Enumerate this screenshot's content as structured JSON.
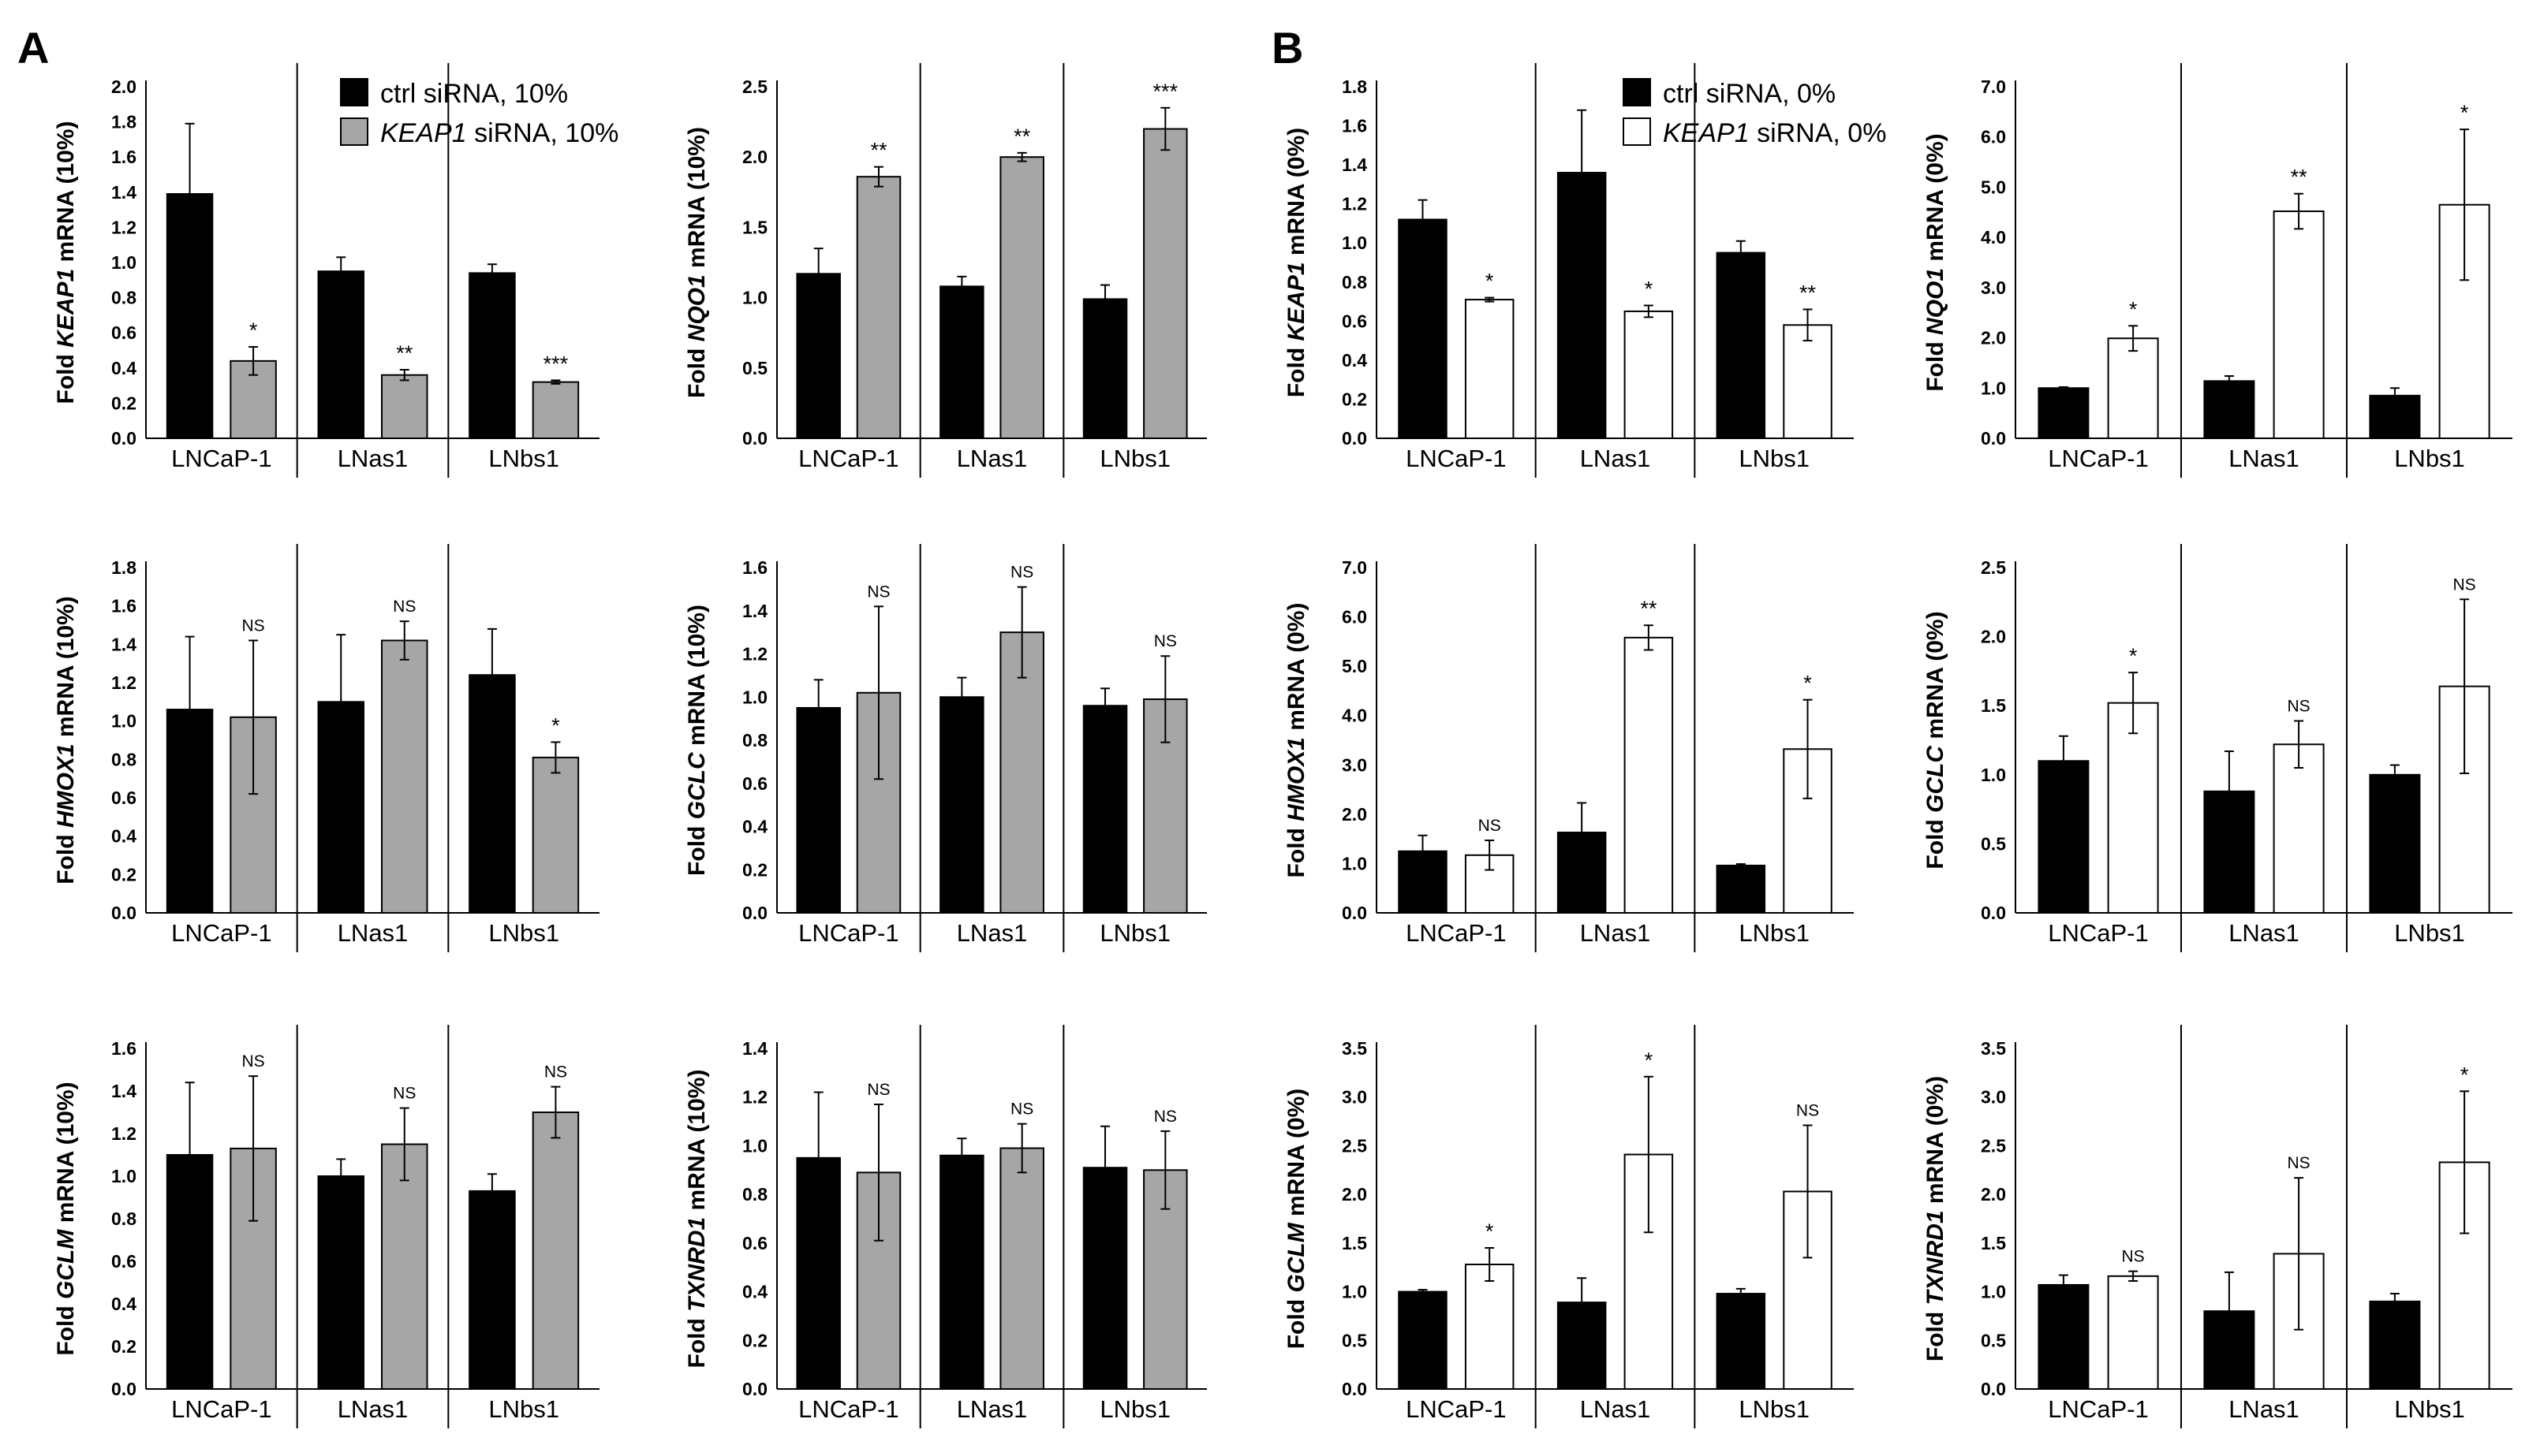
{
  "figure": {
    "panel_letters": [
      "A",
      "B"
    ]
  },
  "legends": {
    "A": {
      "entries": [
        {
          "label_italic": "",
          "label": "ctrl siRNA, 10%",
          "color": "#000000"
        },
        {
          "label_italic": "KEAP1",
          "label": " siRNA, 10%",
          "color": "#a6a6a6"
        }
      ]
    },
    "B": {
      "entries": [
        {
          "label_italic": "",
          "label": "ctrl siRNA, 0%",
          "color": "#000000"
        },
        {
          "label_italic": "KEAP1",
          "label": " siRNA, 0%",
          "color": "#ffffff"
        }
      ]
    }
  },
  "colors": {
    "ctrl": "#000000",
    "keap1_10": "#a6a6a6",
    "keap1_0": "#ffffff"
  },
  "chart_data": [
    {
      "type": "bar",
      "panel": "A",
      "gene": "KEAP1",
      "ylabel_pre": "Fold ",
      "ylabel_gene": "KEAP1",
      "ylabel_post": " mRNA (10%)",
      "ylim": [
        0,
        2.0
      ],
      "yticks": [
        "0.0",
        "0.2",
        "0.4",
        "0.6",
        "0.8",
        "1.0",
        "1.2",
        "1.4",
        "1.6",
        "1.8",
        "2.0"
      ],
      "categories": [
        "LNCaP-1",
        "LNas1",
        "LNbs1"
      ],
      "series": [
        {
          "key": "ctrl",
          "values": [
            1.39,
            0.95,
            0.94
          ],
          "errors": [
            0.4,
            0.08,
            0.05
          ]
        },
        {
          "key": "keap1",
          "values": [
            0.44,
            0.36,
            0.32
          ],
          "errors": [
            0.08,
            0.03,
            0.01
          ]
        }
      ],
      "sig": [
        "*",
        "**",
        "***"
      ]
    },
    {
      "type": "bar",
      "panel": "A",
      "gene": "NQO1",
      "ylabel_pre": "Fold ",
      "ylabel_gene": "NQO1",
      "ylabel_post": " mRNA (10%)",
      "ylim": [
        0,
        2.5
      ],
      "yticks": [
        "0.0",
        "0.5",
        "1.0",
        "1.5",
        "2.0",
        "2.5"
      ],
      "categories": [
        "LNCaP-1",
        "LNas1",
        "LNbs1"
      ],
      "series": [
        {
          "key": "ctrl",
          "values": [
            1.17,
            1.08,
            0.99
          ],
          "errors": [
            0.18,
            0.07,
            0.1
          ]
        },
        {
          "key": "keap1",
          "values": [
            1.86,
            2.0,
            2.2
          ],
          "errors": [
            0.07,
            0.03,
            0.15
          ]
        }
      ],
      "sig": [
        "**",
        "**",
        "***"
      ]
    },
    {
      "type": "bar",
      "panel": "B",
      "gene": "KEAP1",
      "ylabel_pre": "Fold ",
      "ylabel_gene": "KEAP1",
      "ylabel_post": " mRNA (0%)",
      "ylim": [
        0,
        1.8
      ],
      "yticks": [
        "0.0",
        "0.2",
        "0.4",
        "0.6",
        "0.8",
        "1.0",
        "1.2",
        "1.4",
        "1.6",
        "1.8"
      ],
      "categories": [
        "LNCaP-1",
        "LNas1",
        "LNbs1"
      ],
      "series": [
        {
          "key": "ctrl",
          "values": [
            1.12,
            1.36,
            0.95
          ],
          "errors": [
            0.1,
            0.32,
            0.06
          ]
        },
        {
          "key": "keap1",
          "values": [
            0.71,
            0.65,
            0.58
          ],
          "errors": [
            0.01,
            0.03,
            0.08
          ]
        }
      ],
      "sig": [
        "*",
        "*",
        "**"
      ]
    },
    {
      "type": "bar",
      "panel": "B",
      "gene": "NQO1",
      "ylabel_pre": "Fold ",
      "ylabel_gene": "NQO1",
      "ylabel_post": " mRNA (0%)",
      "ylim": [
        0,
        7.0
      ],
      "yticks": [
        "0.0",
        "1.0",
        "2.0",
        "3.0",
        "4.0",
        "5.0",
        "6.0",
        "7.0"
      ],
      "categories": [
        "LNCaP-1",
        "LNas1",
        "LNbs1"
      ],
      "series": [
        {
          "key": "ctrl",
          "values": [
            1.0,
            1.14,
            0.85
          ],
          "errors": [
            0.02,
            0.1,
            0.15
          ]
        },
        {
          "key": "keap1",
          "values": [
            1.99,
            4.52,
            4.65
          ],
          "errors": [
            0.25,
            0.35,
            1.5
          ]
        }
      ],
      "sig": [
        "*",
        "**",
        "*"
      ]
    },
    {
      "type": "bar",
      "panel": "A",
      "gene": "HMOX1",
      "ylabel_pre": "Fold ",
      "ylabel_gene": "HMOX1",
      "ylabel_post": " mRNA (10%)",
      "ylim": [
        0,
        1.8
      ],
      "yticks": [
        "0.0",
        "0.2",
        "0.4",
        "0.6",
        "0.8",
        "1.0",
        "1.2",
        "1.4",
        "1.6",
        "1.8"
      ],
      "categories": [
        "LNCaP-1",
        "LNas1",
        "LNbs1"
      ],
      "series": [
        {
          "key": "ctrl",
          "values": [
            1.06,
            1.1,
            1.24
          ],
          "errors": [
            0.38,
            0.35,
            0.24
          ]
        },
        {
          "key": "keap1",
          "values": [
            1.02,
            1.42,
            0.81
          ],
          "errors": [
            0.4,
            0.1,
            0.08
          ]
        }
      ],
      "sig": [
        "NS",
        "NS",
        "*"
      ]
    },
    {
      "type": "bar",
      "panel": "A",
      "gene": "GCLC",
      "ylabel_pre": "Fold ",
      "ylabel_gene": "GCLC",
      "ylabel_post": " mRNA (10%)",
      "ylim": [
        0,
        1.6
      ],
      "yticks": [
        "0.0",
        "0.2",
        "0.4",
        "0.6",
        "0.8",
        "1.0",
        "1.2",
        "1.4",
        "1.6"
      ],
      "categories": [
        "LNCaP-1",
        "LNas1",
        "LNbs1"
      ],
      "series": [
        {
          "key": "ctrl",
          "values": [
            0.95,
            1.0,
            0.96
          ],
          "errors": [
            0.13,
            0.09,
            0.08
          ]
        },
        {
          "key": "keap1",
          "values": [
            1.02,
            1.3,
            0.99
          ],
          "errors": [
            0.4,
            0.21,
            0.2
          ]
        }
      ],
      "sig": [
        "NS",
        "NS",
        "NS"
      ]
    },
    {
      "type": "bar",
      "panel": "B",
      "gene": "HMOX1",
      "ylabel_pre": "Fold ",
      "ylabel_gene": "HMOX1",
      "ylabel_post": " mRNA (0%)",
      "ylim": [
        0,
        7.0
      ],
      "yticks": [
        "0.0",
        "1.0",
        "2.0",
        "3.0",
        "4.0",
        "5.0",
        "6.0",
        "7.0"
      ],
      "categories": [
        "LNCaP-1",
        "LNas1",
        "LNbs1"
      ],
      "series": [
        {
          "key": "ctrl",
          "values": [
            1.25,
            1.63,
            0.96
          ],
          "errors": [
            0.32,
            0.6,
            0.03
          ]
        },
        {
          "key": "keap1",
          "values": [
            1.17,
            5.58,
            3.32
          ],
          "errors": [
            0.3,
            0.25,
            1.0
          ]
        }
      ],
      "sig": [
        "NS",
        "**",
        "*"
      ]
    },
    {
      "type": "bar",
      "panel": "B",
      "gene": "GCLC",
      "ylabel_pre": "Fold ",
      "ylabel_gene": "GCLC",
      "ylabel_post": " mRNA (0%)",
      "ylim": [
        0,
        2.5
      ],
      "yticks": [
        "0.0",
        "0.5",
        "1.0",
        "1.5",
        "2.0",
        "2.5"
      ],
      "categories": [
        "LNCaP-1",
        "LNas1",
        "LNbs1"
      ],
      "series": [
        {
          "key": "ctrl",
          "values": [
            1.1,
            0.88,
            1.0
          ],
          "errors": [
            0.18,
            0.29,
            0.07
          ]
        },
        {
          "key": "keap1",
          "values": [
            1.52,
            1.22,
            1.64
          ],
          "errors": [
            0.22,
            0.17,
            0.63
          ]
        }
      ],
      "sig": [
        "*",
        "NS",
        "NS"
      ]
    },
    {
      "type": "bar",
      "panel": "A",
      "gene": "GCLM",
      "ylabel_pre": "Fold ",
      "ylabel_gene": "GCLM",
      "ylabel_post": " mRNA (10%)",
      "ylim": [
        0,
        1.6
      ],
      "yticks": [
        "0.0",
        "0.2",
        "0.4",
        "0.6",
        "0.8",
        "1.0",
        "1.2",
        "1.4",
        "1.6"
      ],
      "categories": [
        "LNCaP-1",
        "LNas1",
        "LNbs1"
      ],
      "series": [
        {
          "key": "ctrl",
          "values": [
            1.1,
            1.0,
            0.93
          ],
          "errors": [
            0.34,
            0.08,
            0.08
          ]
        },
        {
          "key": "keap1",
          "values": [
            1.13,
            1.15,
            1.3
          ],
          "errors": [
            0.34,
            0.17,
            0.12
          ]
        }
      ],
      "sig": [
        "NS",
        "NS",
        "NS"
      ]
    },
    {
      "type": "bar",
      "panel": "A",
      "gene": "TXNRD1",
      "ylabel_pre": "Fold ",
      "ylabel_gene": "TXNRD1",
      "ylabel_post": " mRNA (10%)",
      "ylim": [
        0,
        1.4
      ],
      "yticks": [
        "0.0",
        "0.2",
        "0.4",
        "0.6",
        "0.8",
        "1.0",
        "1.2",
        "1.4"
      ],
      "categories": [
        "LNCaP-1",
        "LNas1",
        "LNbs1"
      ],
      "series": [
        {
          "key": "ctrl",
          "values": [
            0.95,
            0.96,
            0.91
          ],
          "errors": [
            0.27,
            0.07,
            0.17
          ]
        },
        {
          "key": "keap1",
          "values": [
            0.89,
            0.99,
            0.9
          ],
          "errors": [
            0.28,
            0.1,
            0.16
          ]
        }
      ],
      "sig": [
        "NS",
        "NS",
        "NS"
      ]
    },
    {
      "type": "bar",
      "panel": "B",
      "gene": "GCLM",
      "ylabel_pre": "Fold ",
      "ylabel_gene": "GCLM",
      "ylabel_post": " mRNA (0%)",
      "ylim": [
        0,
        3.5
      ],
      "yticks": [
        "0.0",
        "0.5",
        "1.0",
        "1.5",
        "2.0",
        "2.5",
        "3.0",
        "3.5"
      ],
      "categories": [
        "LNCaP-1",
        "LNas1",
        "LNbs1"
      ],
      "series": [
        {
          "key": "ctrl",
          "values": [
            1.0,
            0.89,
            0.98
          ],
          "errors": [
            0.02,
            0.25,
            0.05
          ]
        },
        {
          "key": "keap1",
          "values": [
            1.28,
            2.41,
            2.03
          ],
          "errors": [
            0.17,
            0.8,
            0.68
          ]
        }
      ],
      "sig": [
        "*",
        "*",
        "NS"
      ]
    },
    {
      "type": "bar",
      "panel": "B",
      "gene": "TXNRD1",
      "ylabel_pre": "Fold ",
      "ylabel_gene": "TXNRD1",
      "ylabel_post": " mRNA (0%)",
      "ylim": [
        0,
        3.5
      ],
      "yticks": [
        "0.0",
        "0.5",
        "1.0",
        "1.5",
        "2.0",
        "2.5",
        "3.0",
        "3.5"
      ],
      "categories": [
        "LNCaP-1",
        "LNas1",
        "LNbs1"
      ],
      "series": [
        {
          "key": "ctrl",
          "values": [
            1.07,
            0.8,
            0.9
          ],
          "errors": [
            0.1,
            0.4,
            0.08
          ]
        },
        {
          "key": "keap1",
          "values": [
            1.16,
            1.39,
            2.33
          ],
          "errors": [
            0.05,
            0.78,
            0.73
          ]
        }
      ],
      "sig": [
        "NS",
        "NS",
        "*"
      ]
    }
  ]
}
